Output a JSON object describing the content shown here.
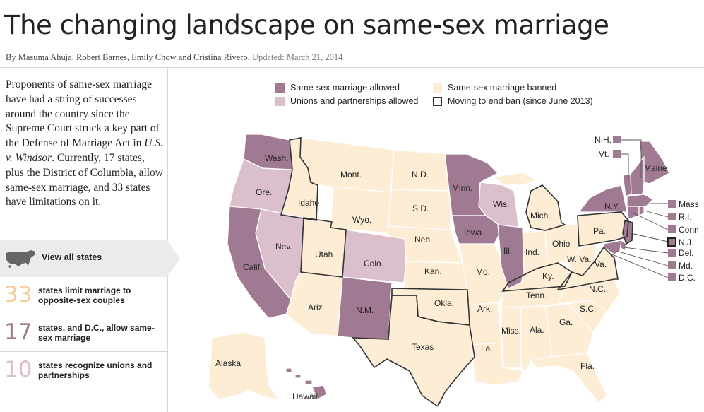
{
  "header": {
    "title": "The changing landscape on same-sex marriage",
    "byline": "By Masuma Ahuja, Robert Barnes, Emily Chow and Cristina Rivero,",
    "updated": "Updated: March 21, 2014"
  },
  "intro": {
    "before_case": "Proponents of same-sex marriage have had a string of successes around the country since the Supreme Court struck a key part of the Defense of Marriage Act in ",
    "case_name": "U.S. v. Windsor",
    "after_case": ". Currently, 17 states, plus the District of Columbia, allow same-sex marriage, and 33 states have limitations on it."
  },
  "view_all": {
    "label": "View all states",
    "icon": "us-map-icon"
  },
  "stats": [
    {
      "number": "33",
      "label": "states limit marriage to opposite-sex couples",
      "color": "#f5cf95"
    },
    {
      "number": "17",
      "label": "states, and D.C., allow same-sex marriage",
      "color": "#a07a92"
    },
    {
      "number": "10",
      "label": "states recognize unions and partnerships",
      "color": "#dbbfcc"
    }
  ],
  "legend": {
    "allowed": "Same-sex marriage allowed",
    "unions": "Unions and partnerships allowed",
    "banned": "Same-sex marriage banned",
    "moving": "Moving to end ban (since June 2013)"
  },
  "colors": {
    "allowed": "#a07a92",
    "unions": "#dbbfcc",
    "banned": "#fcedd4",
    "moving_outline": "#333333"
  },
  "map": {
    "states": {
      "WA": "Wash.",
      "OR": "Ore.",
      "CA": "Calif.",
      "NV": "Nev.",
      "ID": "Idaho",
      "MT": "Mont.",
      "WY": "Wyo.",
      "UT": "Utah",
      "CO": "Colo.",
      "AZ": "Ariz.",
      "NM": "N.M.",
      "ND": "N.D.",
      "SD": "S.D.",
      "NE": "Neb.",
      "KS": "Kan.",
      "OK": "Okla.",
      "TX": "Texas",
      "MN": "Minn.",
      "IA": "Iowa",
      "MO": "Mo.",
      "AR": "Ark.",
      "LA": "La.",
      "WI": "Wis.",
      "IL": "Ill.",
      "MI": "Mich.",
      "IN": "Ind.",
      "OH": "Ohio",
      "KY": "Ky.",
      "TN": "Tenn.",
      "MS": "Miss.",
      "AL": "Ala.",
      "GA": "Ga.",
      "FL": "Fla.",
      "SC": "S.C.",
      "NC": "N.C.",
      "VA": "Va.",
      "WV": "W. Va.",
      "PA": "Pa.",
      "NY": "N.Y.",
      "ME": "Maine",
      "AK": "Alaska",
      "HI": "Hawaii"
    },
    "small_states": {
      "NH": "N.H.",
      "VT": "Vt.",
      "MA": "Mass.",
      "RI": "R.I.",
      "CT": "Conn.",
      "NJ": "N.J.",
      "DE": "Del.",
      "MD": "Md.",
      "DC": "D.C."
    }
  }
}
